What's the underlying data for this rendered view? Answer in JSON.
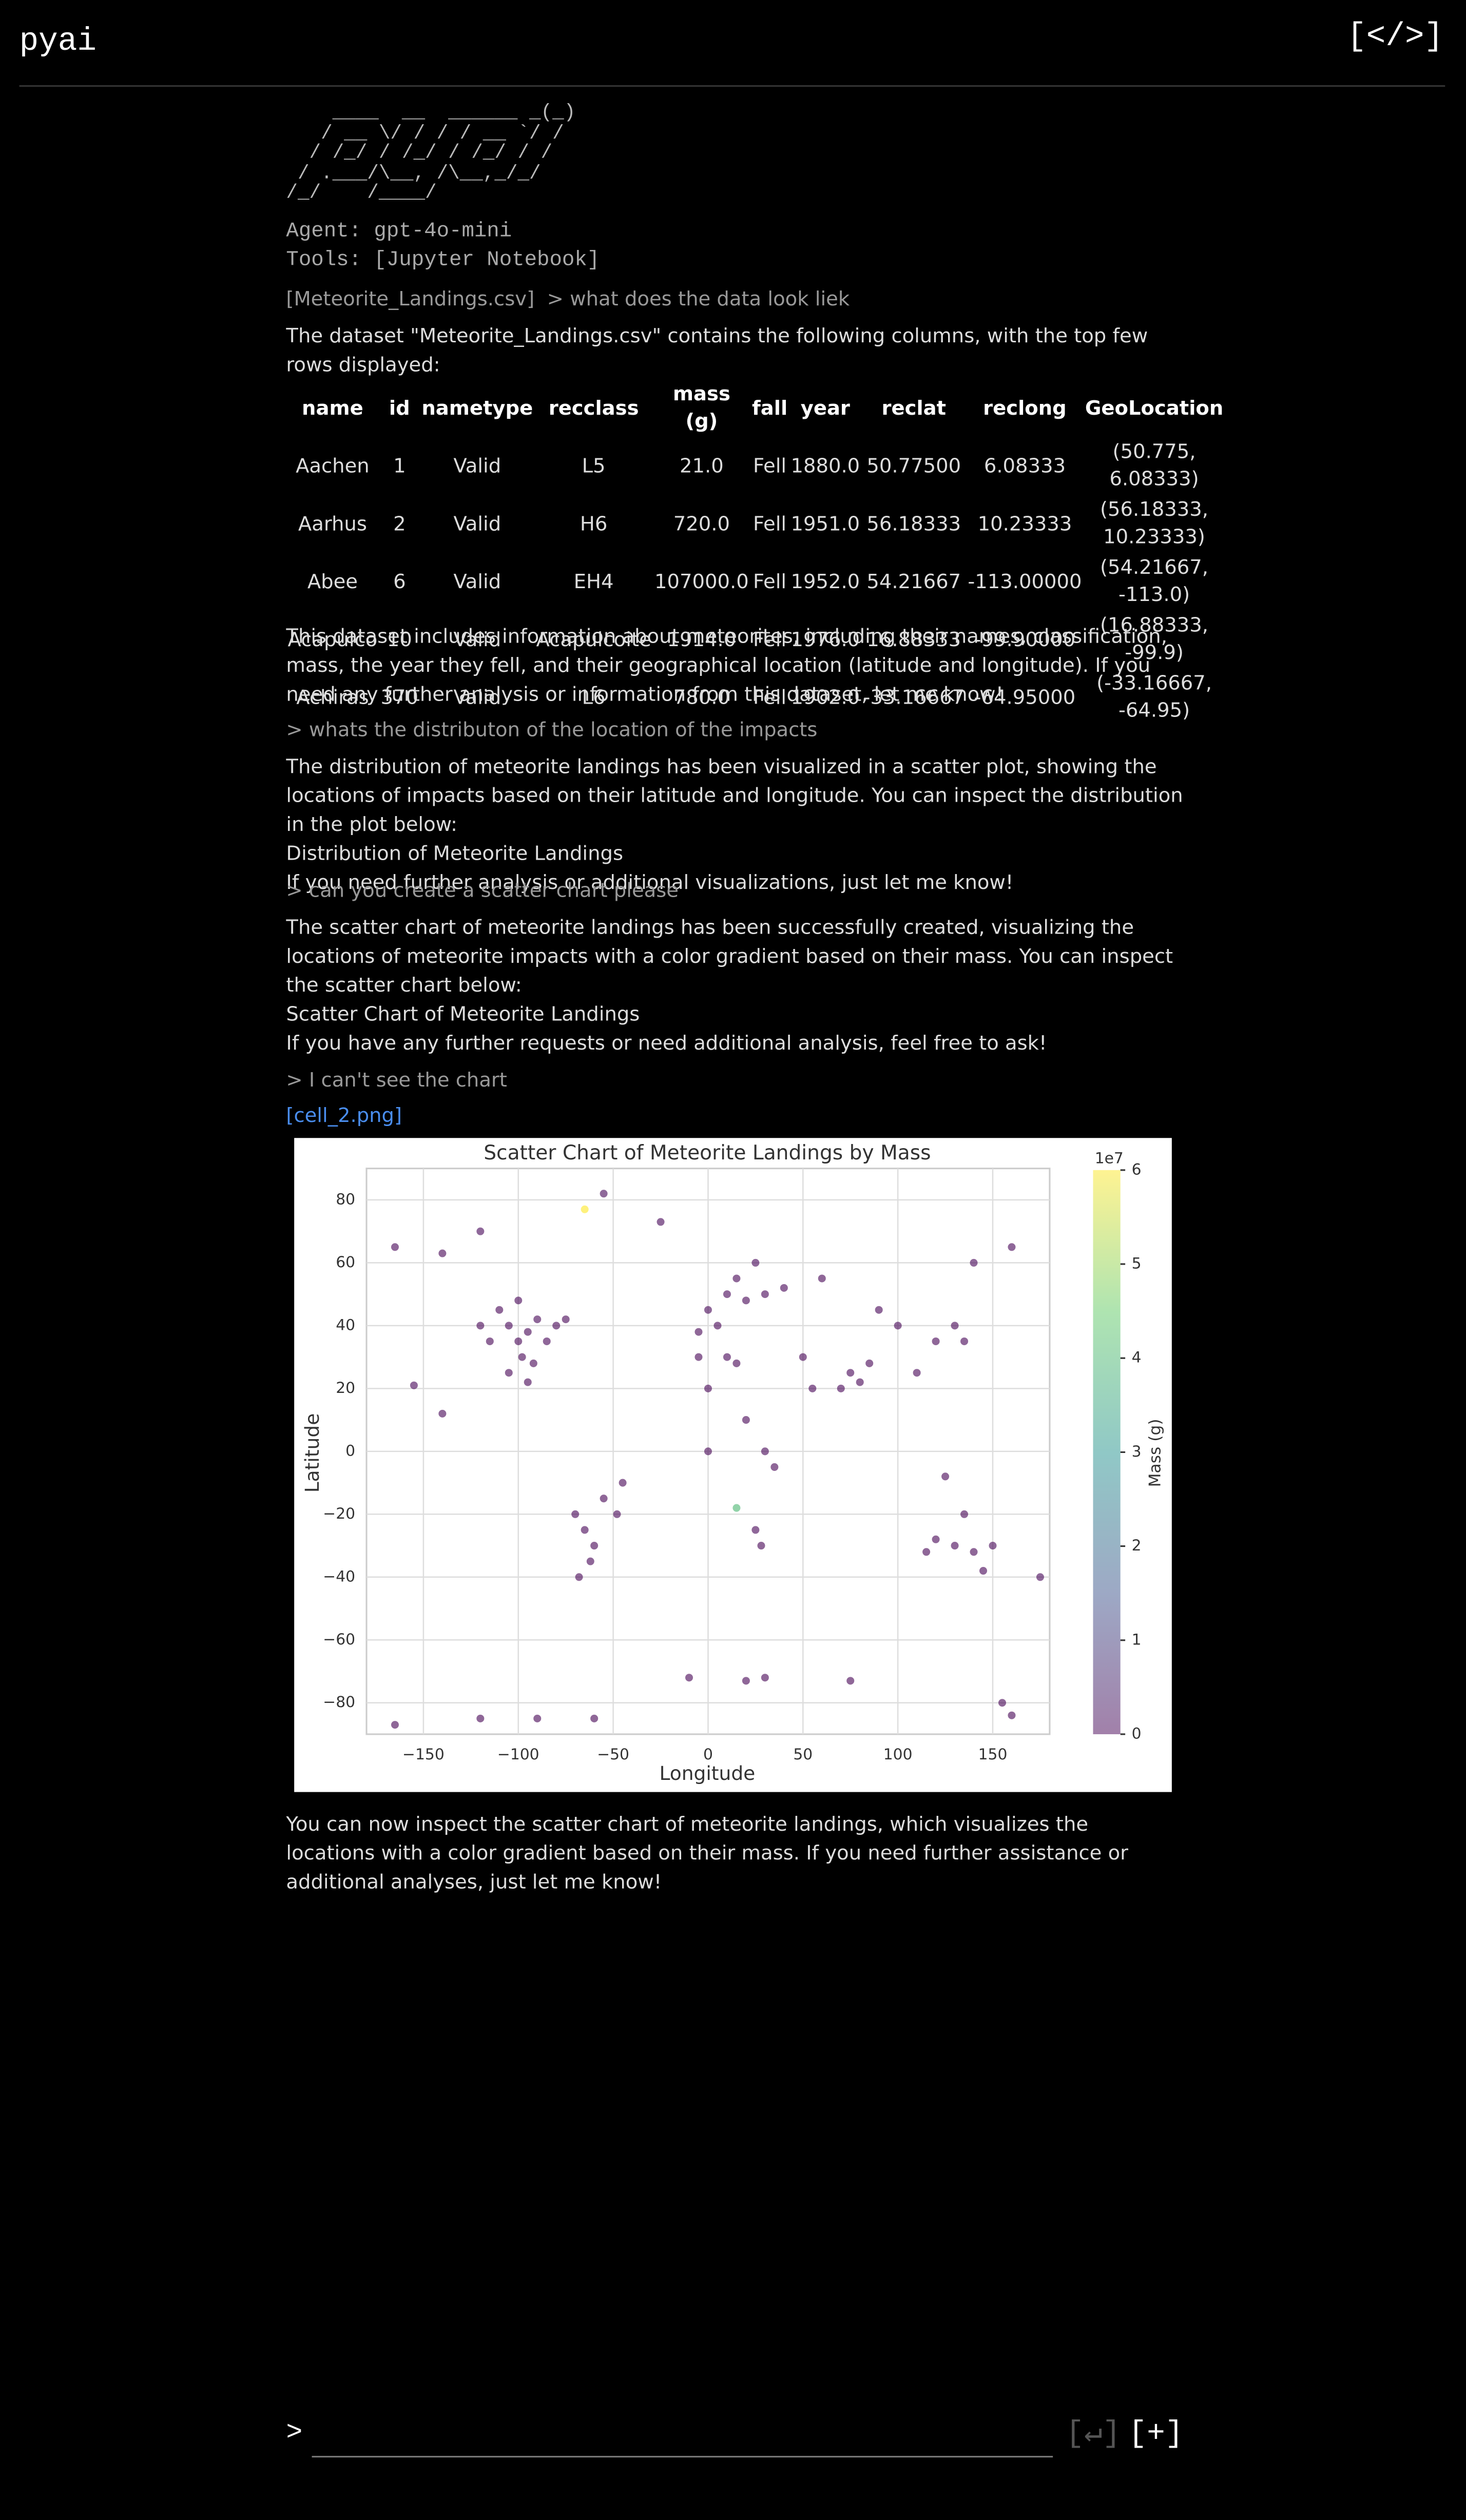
{
  "header": {
    "title": "pyai",
    "code_button": "[</>]"
  },
  "banner": {
    "logo": "    ____  __  ______ _(_)\n   / __ \\/ / / / __ `/ /\n  / /_/ / /_/ / /_/ / /\n / .___/\\__, /\\__,_/_/\n/_/    /____/",
    "agent": "Agent: gpt-4o-mini",
    "tools": "Tools: [Jupyter Notebook]"
  },
  "turns": [
    {
      "attachment": "[Meteorite_Landings.csv]",
      "prompt": "> what does the data look liek",
      "response_intro": "The dataset \"Meteorite_Landings.csv\" contains the following columns, with the top few rows displayed:",
      "table": {
        "columns": [
          "name",
          "id",
          "nametype",
          "recclass",
          "mass (g)",
          "fall",
          "year",
          "reclat",
          "reclong",
          "GeoLocation"
        ],
        "rows": [
          [
            "Aachen",
            "1",
            "Valid",
            "L5",
            "21.0",
            "Fell",
            "1880.0",
            "50.77500",
            "6.08333",
            "(50.775, 6.08333)"
          ],
          [
            "Aarhus",
            "2",
            "Valid",
            "H6",
            "720.0",
            "Fell",
            "1951.0",
            "56.18333",
            "10.23333",
            "(56.18333, 10.23333)"
          ],
          [
            "Abee",
            "6",
            "Valid",
            "EH4",
            "107000.0",
            "Fell",
            "1952.0",
            "54.21667",
            "-113.00000",
            "(54.21667, -113.0)"
          ],
          [
            "Acapulco",
            "10",
            "Valid",
            "Acapulcoite",
            "1914.0",
            "Fell",
            "1976.0",
            "16.88333",
            "-99.90000",
            "(16.88333, -99.9)"
          ],
          [
            "Achiras",
            "370",
            "Valid",
            "L6",
            "780.0",
            "Fell",
            "1902.0",
            "-33.16667",
            "-64.95000",
            "(-33.16667, -64.95)"
          ]
        ]
      },
      "response_outro": "This dataset includes information about meteorites, including their names, classification, mass, the year they fell, and their geographical location (latitude and longitude). If you need any further analysis or information from this dataset, let me know!"
    },
    {
      "prompt": "> whats the distributon of the location of the impacts",
      "response": [
        "The distribution of meteorite landings has been visualized in a scatter plot, showing the locations of impacts based on their latitude and longitude. You can inspect the distribution in the plot below:",
        "Distribution of Meteorite Landings",
        "If you need further analysis or additional visualizations, just let me know!"
      ]
    },
    {
      "prompt": "> can you create a scatter chart please",
      "response": [
        "The scatter chart of meteorite landings has been successfully created, visualizing the locations of meteorite impacts with a color gradient based on their mass. You can inspect the scatter chart below:",
        "Scatter Chart of Meteorite Landings",
        "If you have any further requests or need additional analysis, feel free to ask!"
      ]
    },
    {
      "prompt": "> I can't see the chart",
      "link": "[cell_2.png]",
      "response": "You can now inspect the scatter chart of meteorite landings, which visualizes the locations with a color gradient based on their mass. If you need further assistance or additional analyses, just let me know!"
    }
  ],
  "input": {
    "prompt_symbol": ">",
    "submit": "[↵]",
    "add": "[+]"
  },
  "chart_data": {
    "type": "scatter",
    "title": "Scatter Chart of Meteorite Landings by Mass",
    "x_label": "Longitude",
    "y_label": "Latitude",
    "colorbar_label": "Mass (g)",
    "colorbar_offset": "1e7",
    "colormap": "viridis",
    "grid": true,
    "xlim": [
      -180,
      180
    ],
    "ylim": [
      -90,
      90
    ],
    "clim": [
      0,
      6
    ],
    "xticks": [
      {
        "value": -150,
        "label": "−150"
      },
      {
        "value": -100,
        "label": "−100"
      },
      {
        "value": -50,
        "label": "−50"
      },
      0,
      50,
      100,
      150
    ],
    "yticks": [
      {
        "value": -80,
        "label": "−80"
      },
      {
        "value": -60,
        "label": "−60"
      },
      {
        "value": -40,
        "label": "−40"
      },
      {
        "value": -20,
        "label": "−20"
      },
      0,
      20,
      40,
      60,
      80
    ],
    "cticks": [
      0,
      1,
      2,
      3,
      4,
      5,
      6
    ],
    "x": [
      -100,
      -105,
      -95,
      -90,
      -110,
      -98,
      -85,
      -80,
      -115,
      -100,
      -92,
      -120,
      -75,
      -105,
      -95,
      -165,
      -140,
      -120,
      -65,
      -65,
      -60,
      -70,
      -55,
      -48,
      -68,
      -62,
      -45,
      10,
      20,
      0,
      15,
      30,
      5,
      25,
      -5,
      40,
      -5,
      10,
      0,
      20,
      30,
      35,
      25,
      28,
      15,
      55,
      50,
      75,
      80,
      85,
      70,
      100,
      120,
      135,
      110,
      130,
      90,
      60,
      140,
      160,
      120,
      130,
      140,
      150,
      135,
      145,
      115,
      125,
      -165,
      -120,
      -60,
      30,
      75,
      155,
      160,
      20,
      -90,
      -10,
      -155,
      -140,
      -25,
      -55,
      175,
      0,
      15
    ],
    "values": [
      35,
      40,
      38,
      42,
      45,
      30,
      35,
      40,
      35,
      48,
      28,
      40,
      42,
      25,
      22,
      65,
      63,
      70,
      77,
      -25,
      -30,
      -20,
      -15,
      -20,
      -40,
      -35,
      -10,
      50,
      48,
      45,
      55,
      50,
      40,
      60,
      38,
      52,
      30,
      30,
      20,
      10,
      0,
      -5,
      -25,
      -30,
      28,
      20,
      30,
      25,
      22,
      28,
      20,
      40,
      35,
      35,
      25,
      40,
      45,
      55,
      60,
      65,
      -28,
      -30,
      -32,
      -30,
      -20,
      -38,
      -32,
      -8,
      -87,
      -85,
      -85,
      -72,
      -73,
      -80,
      -84,
      -73,
      -85,
      -72,
      21,
      12,
      73,
      82,
      -40,
      0,
      -18
    ],
    "color_values": [
      0.01,
      0.02,
      0.01,
      0.03,
      0.01,
      0.01,
      0.02,
      0.01,
      0.01,
      0.02,
      0.01,
      0.01,
      0.01,
      0.01,
      0.01,
      0.02,
      0.01,
      0.05,
      6,
      0.02,
      0.01,
      0.02,
      0.01,
      0.03,
      0.01,
      0.02,
      0.01,
      0.02,
      0.01,
      0.03,
      0.01,
      0.02,
      0.01,
      0.05,
      0.01,
      0.02,
      0.01,
      0.02,
      0.01,
      0.01,
      0.03,
      0.01,
      0.02,
      0.01,
      0.01,
      0.02,
      0.01,
      0.02,
      0.01,
      0.01,
      0.02,
      0.03,
      0.01,
      0.02,
      0.01,
      0.01,
      0.02,
      0.01,
      0.05,
      0.02,
      0.01,
      0.02,
      0.01,
      0.03,
      0.01,
      0.02,
      0.01,
      0.01,
      0.01,
      0.01,
      0.01,
      0.01,
      0.01,
      0.01,
      0.01,
      0.01,
      0.01,
      0.01,
      0.05,
      0.03,
      0.05,
      0.08,
      0.05,
      0.01,
      4
    ]
  }
}
